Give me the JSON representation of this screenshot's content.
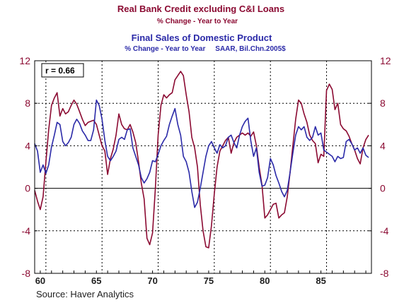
{
  "chart_data": {
    "type": "line",
    "title": "Real Bank Credit excluding C&I Loans",
    "title_subtitle": "% Change - Year to Year",
    "title2": "Final Sales of Domestic Product",
    "title2_subtitle": "% Change - Year to Year     SAAR, Bil.Chn.2005$",
    "source": "Source: Haver Analytics",
    "annotation": "r = 0.66",
    "xlim": [
      1959.5,
      1989.5
    ],
    "ylim": [
      -8,
      12
    ],
    "grid": true,
    "x_ticks": [
      1960,
      1965,
      1970,
      1975,
      1980,
      1985
    ],
    "x_tick_labels": [
      "60",
      "65",
      "70",
      "75",
      "80",
      "85"
    ],
    "y_ticks": [
      -8,
      -4,
      0,
      4,
      8,
      12
    ],
    "y_tick_labels": [
      "-8",
      "-4",
      "0",
      "4",
      "8",
      "12"
    ],
    "colors": {
      "credit": "#8B0A32",
      "sales": "#2B2AA8",
      "axis_left": "#8B0A32",
      "axis_right": "#8B0A32"
    },
    "series": [
      {
        "key": "credit",
        "name": "Real Bank Credit excluding C&I Loans",
        "x": [
          1959.5,
          1959.75,
          1960.0,
          1960.25,
          1960.5,
          1960.75,
          1961.0,
          1961.25,
          1961.5,
          1961.75,
          1962.0,
          1962.25,
          1962.5,
          1962.75,
          1963.0,
          1963.25,
          1963.5,
          1963.75,
          1964.0,
          1964.25,
          1964.5,
          1964.75,
          1965.0,
          1965.25,
          1965.5,
          1965.75,
          1966.0,
          1966.25,
          1966.5,
          1966.75,
          1967.0,
          1967.25,
          1967.5,
          1967.75,
          1968.0,
          1968.25,
          1968.5,
          1968.75,
          1969.0,
          1969.25,
          1969.5,
          1969.75,
          1970.0,
          1970.25,
          1970.5,
          1970.75,
          1971.0,
          1971.25,
          1971.5,
          1971.75,
          1972.0,
          1972.25,
          1972.5,
          1972.75,
          1973.0,
          1973.25,
          1973.5,
          1973.75,
          1974.0,
          1974.25,
          1974.5,
          1974.75,
          1975.0,
          1975.25,
          1975.5,
          1975.75,
          1976.0,
          1976.25,
          1976.5,
          1976.75,
          1977.0,
          1977.25,
          1977.5,
          1977.75,
          1978.0,
          1978.25,
          1978.5,
          1978.75,
          1979.0,
          1979.25,
          1979.5,
          1979.75,
          1980.0,
          1980.25,
          1980.5,
          1980.75,
          1981.0,
          1981.25,
          1981.5,
          1981.75,
          1982.0,
          1982.25,
          1982.5,
          1982.75,
          1983.0,
          1983.25,
          1983.5,
          1983.75,
          1984.0,
          1984.25,
          1984.5,
          1984.75,
          1985.0,
          1985.25,
          1985.5,
          1985.75,
          1986.0,
          1986.25,
          1986.5,
          1986.75,
          1987.0,
          1987.25,
          1987.5,
          1987.75,
          1988.0,
          1988.25,
          1988.5,
          1988.75,
          1989.0,
          1989.25
        ],
        "values": [
          -0.2,
          -1.2,
          -2.0,
          -0.8,
          2.5,
          5.5,
          7.8,
          8.5,
          9.0,
          6.8,
          7.5,
          7.0,
          7.2,
          7.8,
          8.3,
          7.9,
          7.2,
          6.5,
          5.9,
          6.2,
          6.3,
          6.4,
          6.0,
          5.0,
          4.0,
          3.5,
          1.3,
          2.8,
          3.7,
          5.0,
          7.0,
          6.0,
          5.6,
          5.5,
          6.0,
          5.3,
          4.3,
          2.5,
          0.5,
          -1.0,
          -4.7,
          -5.3,
          -4.2,
          0.0,
          5.0,
          7.8,
          8.8,
          8.5,
          8.8,
          9.0,
          10.2,
          10.6,
          11.0,
          10.6,
          8.8,
          7.2,
          4.8,
          3.8,
          2.0,
          -1.5,
          -4.0,
          -5.5,
          -5.6,
          -3.5,
          -0.5,
          2.0,
          3.5,
          4.0,
          4.5,
          4.8,
          3.3,
          4.3,
          4.8,
          5.0,
          5.2,
          5.0,
          5.2,
          4.9,
          5.3,
          4.0,
          2.0,
          0.3,
          -2.8,
          -2.5,
          -2.0,
          -1.5,
          -1.4,
          -2.8,
          -2.5,
          -2.3,
          -0.8,
          1.5,
          4.0,
          6.5,
          8.3,
          8.0,
          7.0,
          6.2,
          5.0,
          4.5,
          4.2,
          2.4,
          3.2,
          3.0,
          9.2,
          9.8,
          9.3,
          7.4,
          8.0,
          6.0,
          5.6,
          5.4,
          4.9,
          4.2,
          3.6,
          2.8,
          2.3,
          3.8,
          4.6,
          5.0
        ]
      },
      {
        "key": "sales",
        "name": "Final Sales of Domestic Product",
        "x": [
          1959.5,
          1959.75,
          1960.0,
          1960.25,
          1960.5,
          1960.75,
          1961.0,
          1961.25,
          1961.5,
          1961.75,
          1962.0,
          1962.25,
          1962.5,
          1962.75,
          1963.0,
          1963.25,
          1963.5,
          1963.75,
          1964.0,
          1964.25,
          1964.5,
          1964.75,
          1965.0,
          1965.25,
          1965.5,
          1965.75,
          1966.0,
          1966.25,
          1966.5,
          1966.75,
          1967.0,
          1967.25,
          1967.5,
          1967.75,
          1968.0,
          1968.25,
          1968.5,
          1968.75,
          1969.0,
          1969.25,
          1969.5,
          1969.75,
          1970.0,
          1970.25,
          1970.5,
          1970.75,
          1971.0,
          1971.25,
          1971.5,
          1971.75,
          1972.0,
          1972.25,
          1972.5,
          1972.75,
          1973.0,
          1973.25,
          1973.5,
          1973.75,
          1974.0,
          1974.25,
          1974.5,
          1974.75,
          1975.0,
          1975.25,
          1975.5,
          1975.75,
          1976.0,
          1976.25,
          1976.5,
          1976.75,
          1977.0,
          1977.25,
          1977.5,
          1977.75,
          1978.0,
          1978.25,
          1978.5,
          1978.75,
          1979.0,
          1979.25,
          1979.5,
          1979.75,
          1980.0,
          1980.25,
          1980.5,
          1980.75,
          1981.0,
          1981.25,
          1981.5,
          1981.75,
          1982.0,
          1982.25,
          1982.5,
          1982.75,
          1983.0,
          1983.25,
          1983.5,
          1983.75,
          1984.0,
          1984.25,
          1984.5,
          1984.75,
          1985.0,
          1985.25,
          1985.5,
          1985.75,
          1986.0,
          1986.25,
          1986.5,
          1986.75,
          1987.0,
          1987.25,
          1987.5,
          1987.75,
          1988.0,
          1988.25,
          1988.5,
          1988.75,
          1989.0,
          1989.25
        ],
        "values": [
          4.2,
          3.5,
          1.5,
          2.2,
          1.4,
          2.2,
          3.9,
          5.0,
          6.2,
          6.0,
          4.4,
          4.0,
          4.3,
          4.8,
          6.0,
          6.5,
          6.1,
          5.4,
          5.0,
          4.5,
          4.5,
          5.5,
          8.3,
          7.8,
          6.5,
          4.5,
          3.0,
          2.6,
          3.0,
          3.5,
          4.6,
          4.8,
          4.6,
          5.5,
          5.6,
          3.8,
          3.0,
          2.2,
          1.0,
          0.5,
          0.9,
          1.5,
          2.6,
          2.5,
          3.2,
          4.0,
          4.5,
          4.9,
          6.0,
          6.8,
          7.5,
          6.0,
          5.0,
          3.0,
          2.5,
          1.5,
          -0.3,
          -1.8,
          -1.3,
          0.0,
          1.5,
          3.0,
          4.0,
          4.4,
          3.8,
          3.3,
          4.1,
          3.8,
          4.0,
          4.8,
          5.0,
          4.3,
          3.8,
          5.0,
          5.8,
          6.3,
          6.6,
          4.5,
          3.0,
          3.8,
          1.5,
          0.2,
          0.3,
          1.0,
          2.8,
          2.2,
          1.2,
          0.5,
          -0.3,
          -0.8,
          -0.2,
          1.5,
          3.3,
          5.0,
          5.8,
          5.5,
          5.8,
          4.8,
          4.5,
          4.8,
          5.8,
          5.0,
          5.2,
          3.6,
          3.4,
          3.2,
          3.0,
          2.5,
          3.0,
          2.8,
          2.9,
          4.4,
          4.6,
          4.2,
          3.6,
          3.8,
          3.3,
          3.8,
          3.1,
          2.9
        ]
      }
    ]
  }
}
